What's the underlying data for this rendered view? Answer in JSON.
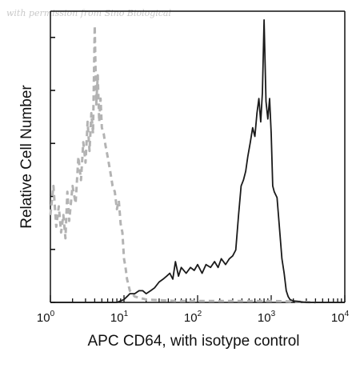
{
  "watermark": "with permission from Sino Biological",
  "chart_data": {
    "type": "line",
    "xlabel": "APC CD64, with isotype control",
    "ylabel": "Relative Cell Number",
    "x_scale": "log",
    "xlim": [
      1,
      10000
    ],
    "ylim": [
      0,
      100
    ],
    "x_ticks": [
      {
        "value": 1,
        "base": "10",
        "exp": "0"
      },
      {
        "value": 10,
        "base": "10",
        "exp": "1"
      },
      {
        "value": 100,
        "base": "10",
        "exp": "2"
      },
      {
        "value": 1000,
        "base": "10",
        "exp": "3"
      },
      {
        "value": 10000,
        "base": "10",
        "exp": "4"
      }
    ],
    "y_ticks": [
      0,
      18.2,
      36.4,
      54.6,
      72.8,
      91
    ],
    "grid": false,
    "series": [
      {
        "style": "dashed",
        "color": "#b3b3b3",
        "x": [
          1.0,
          1.1,
          1.2,
          1.3,
          1.4,
          1.5,
          1.6,
          1.7,
          1.8,
          2.0,
          2.2,
          2.4,
          2.6,
          2.8,
          3.0,
          3.2,
          3.4,
          3.6,
          3.8,
          4.0,
          4.2,
          4.4,
          4.6,
          4.8,
          5.0,
          5.3,
          5.6,
          6.0,
          6.5,
          7.0,
          7.5,
          8.0,
          8.5,
          9.0,
          9.5,
          10.0,
          10.5,
          11.0,
          12.0,
          14.0,
          20.0,
          50.0,
          200.0,
          500.0,
          1000.0,
          2000.0,
          4000.0
        ],
        "y": [
          30,
          40,
          26,
          33,
          24,
          30,
          22,
          38,
          28,
          40,
          34,
          50,
          42,
          55,
          48,
          62,
          52,
          65,
          58,
          95,
          68,
          78,
          62,
          70,
          60,
          58,
          54,
          50,
          45,
          40,
          38,
          32,
          35,
          27,
          24,
          15,
          12,
          8,
          4,
          2,
          1,
          0.5,
          0.5,
          0.5,
          0.5,
          0.3,
          0
        ],
        "peak_x": 4.0,
        "peak_y": 95
      },
      {
        "style": "solid",
        "color": "#1a1a1a",
        "x": [
          1.0,
          8.0,
          10.0,
          11.0,
          12.0,
          14.0,
          16.0,
          18.0,
          20.0,
          23.0,
          26.0,
          30.0,
          34.0,
          38.0,
          42.0,
          46.0,
          50.0,
          55.0,
          60.0,
          70.0,
          80.0,
          90.0,
          100.0,
          115.0,
          130.0,
          150.0,
          170.0,
          190.0,
          210.0,
          240.0,
          270.0,
          300.0,
          330.0,
          360.0,
          390.0,
          420.0,
          450.0,
          480.0,
          520.0,
          560.0,
          600.0,
          640.0,
          680.0,
          720.0,
          760.0,
          800.0,
          850.0,
          900.0,
          950.0,
          1000.0,
          1050.0,
          1100.0,
          1200.0,
          1300.0,
          1400.0,
          1500.0,
          1600.0,
          1700.0,
          1800.0,
          2000.0,
          3000.0,
          10000.0
        ],
        "y": [
          0,
          0,
          1,
          2,
          3,
          3,
          4,
          4,
          3,
          4,
          5,
          7,
          8,
          9,
          10,
          8,
          14,
          9,
          12,
          10,
          12,
          11,
          13,
          10,
          13,
          12,
          14,
          12,
          15,
          13,
          15,
          16,
          18,
          30,
          40,
          42,
          45,
          50,
          55,
          60,
          57,
          65,
          70,
          62,
          72,
          97,
          69,
          63,
          70,
          58,
          40,
          38,
          36,
          25,
          15,
          10,
          4,
          2,
          1,
          0.5,
          0,
          0
        ],
        "peak_x": 800.0,
        "peak_y": 97
      }
    ]
  }
}
